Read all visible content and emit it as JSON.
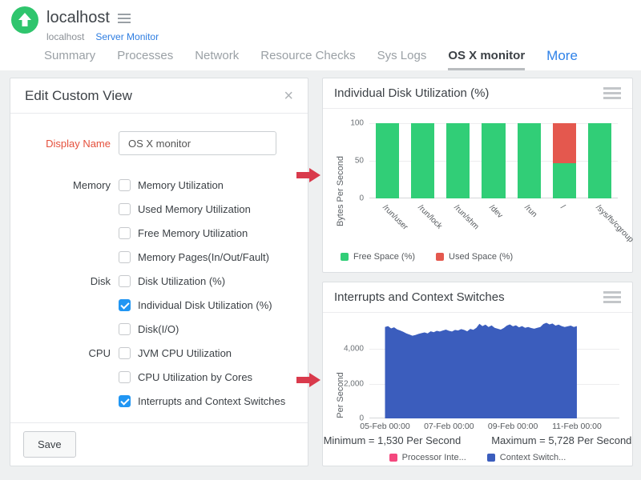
{
  "header": {
    "monitor_name": "localhost",
    "breadcrumb": {
      "host": "localhost",
      "type": "Server Monitor"
    },
    "tabs": [
      {
        "label": "Summary"
      },
      {
        "label": "Processes"
      },
      {
        "label": "Network"
      },
      {
        "label": "Resource Checks"
      },
      {
        "label": "Sys Logs"
      },
      {
        "label": "OS X monitor",
        "active": true
      },
      {
        "label": "More",
        "more": true
      }
    ]
  },
  "edit_panel": {
    "title": "Edit Custom View",
    "close_glyph": "×",
    "display_name": {
      "label": "Display Name",
      "value": "OS X monitor"
    },
    "groups": [
      {
        "label": "Memory",
        "items": [
          {
            "label": "Memory Utilization",
            "checked": false
          },
          {
            "label": "Used Memory Utilization",
            "checked": false
          },
          {
            "label": "Free Memory Utilization",
            "checked": false
          },
          {
            "label": "Memory Pages(In/Out/Fault)",
            "checked": false
          }
        ]
      },
      {
        "label": "Disk",
        "items": [
          {
            "label": "Disk Utilization (%)",
            "checked": false
          },
          {
            "label": "Individual Disk Utilization (%)",
            "checked": true
          },
          {
            "label": "Disk(I/O)",
            "checked": false
          }
        ]
      },
      {
        "label": "CPU",
        "items": [
          {
            "label": "JVM CPU Utilization",
            "checked": false
          },
          {
            "label": "CPU Utilization by Cores",
            "checked": false
          },
          {
            "label": "Interrupts and Context Switches",
            "checked": true
          }
        ]
      }
    ],
    "save_label": "Save"
  },
  "chart_data": [
    {
      "type": "bar",
      "stacked": true,
      "title": "Individual Disk Utilization (%)",
      "categories": [
        "/run/user",
        "/run/lock",
        "/run/shm",
        "/dev",
        "/run",
        "/",
        "/sys/fs/cgroup"
      ],
      "series": [
        {
          "name": "Free Space (%)",
          "color": "#31ce77",
          "values": [
            100,
            100,
            100,
            100,
            100,
            47,
            100
          ]
        },
        {
          "name": "Used Space (%)",
          "color": "#e4584e",
          "values": [
            0,
            0,
            0,
            0,
            0,
            53,
            0
          ]
        }
      ],
      "xlabel": "",
      "ylabel": "Bytes Per Second",
      "ylim": [
        0,
        100
      ],
      "yticks": [
        0,
        50,
        100
      ],
      "ytick_labels": [
        "0",
        "50",
        "100"
      ],
      "grid": true,
      "legend_position": "bottom"
    },
    {
      "type": "area",
      "title": "Interrupts and Context Switches",
      "xlabel": "",
      "ylabel": "Per Second",
      "ylim": [
        0,
        5800
      ],
      "yticks": [
        0,
        2000,
        4000
      ],
      "ytick_labels": [
        "0",
        "2,000",
        "4,000"
      ],
      "xticks": [
        "05-Feb 00:00",
        "07-Feb 00:00",
        "09-Feb 00:00",
        "11-Feb 00:00"
      ],
      "grid": true,
      "legend_position": "bottom",
      "series": [
        {
          "name": "Processor Inte...",
          "color": "#f4487e",
          "values": []
        },
        {
          "name": "Context Switch...",
          "color": "#3b5dbd",
          "values": [
            5260,
            5310,
            5180,
            5240,
            5120,
            5060,
            4980,
            4890,
            4830,
            4760,
            4800,
            4860,
            4910,
            4950,
            4890,
            5010,
            4960,
            5040,
            5000,
            5060,
            5110,
            5040,
            5000,
            5090,
            5060,
            5140,
            5090,
            5010,
            5150,
            5100,
            5210,
            5440,
            5310,
            5400,
            5260,
            5350,
            5210,
            5160,
            5110,
            5200,
            5340,
            5410,
            5300,
            5360,
            5240,
            5310,
            5210,
            5260,
            5200,
            5160,
            5210,
            5260,
            5430,
            5500,
            5410,
            5460,
            5340,
            5400,
            5310,
            5260,
            5300,
            5340,
            5260,
            5310
          ]
        }
      ],
      "summary": {
        "minimum": "Minimum = 1,530 Per Second",
        "maximum": "Maximum = 5,728 Per Second"
      }
    }
  ],
  "annotations": {
    "arrow_color": "#d93a4c"
  },
  "badge": {
    "color": "#2fc56d"
  }
}
